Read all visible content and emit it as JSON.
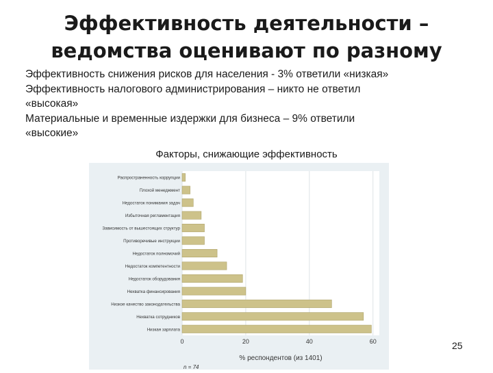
{
  "slide": {
    "title_line1": "Эффективность деятельности –",
    "title_line2": "ведомства оценивают по разному",
    "bullets": [
      "Эффективность снижения рисков для населения  - 3% ответили «низкая»",
      "Эффективность налогового администрирования – никто не ответил",
      "«высокая»",
      "Материальные и временные издержки для бизнеса – 9% ответили",
      "«высокие»"
    ],
    "chart_heading": "Факторы, снижающие эффективность",
    "page_number": "25"
  },
  "chart_data": {
    "type": "bar",
    "orientation": "horizontal",
    "categories": [
      "Распространенность коррупции",
      "Плохой менеджмент",
      "Недостаток понимания задач",
      "Избыточная регламентация",
      "Зависимость от вышестоящих структур",
      "Противоречивые инструкции",
      "Недостаток полномочий",
      "Недостаток компетентности",
      "Недостаток оборудования",
      "Нехватка финансирования",
      "Низкое качество законодательства",
      "Нехватка сотрудников",
      "Низкая зарплата"
    ],
    "values": [
      1,
      2.5,
      3.5,
      6,
      7,
      7,
      11,
      14,
      19,
      20,
      47,
      57,
      59.5
    ],
    "xlabel": "% респондентов (из 1401)",
    "xlim": [
      0,
      62
    ],
    "xticks": [
      0,
      20,
      40,
      60
    ],
    "grid": true,
    "footnote": "n = 74",
    "colors": {
      "bar": "#cdc28a",
      "bar_edge": "#aea36a",
      "plot_bg": "#ffffff",
      "frame_bg": "#eaf0f3",
      "grid": "#dde3e6"
    }
  }
}
